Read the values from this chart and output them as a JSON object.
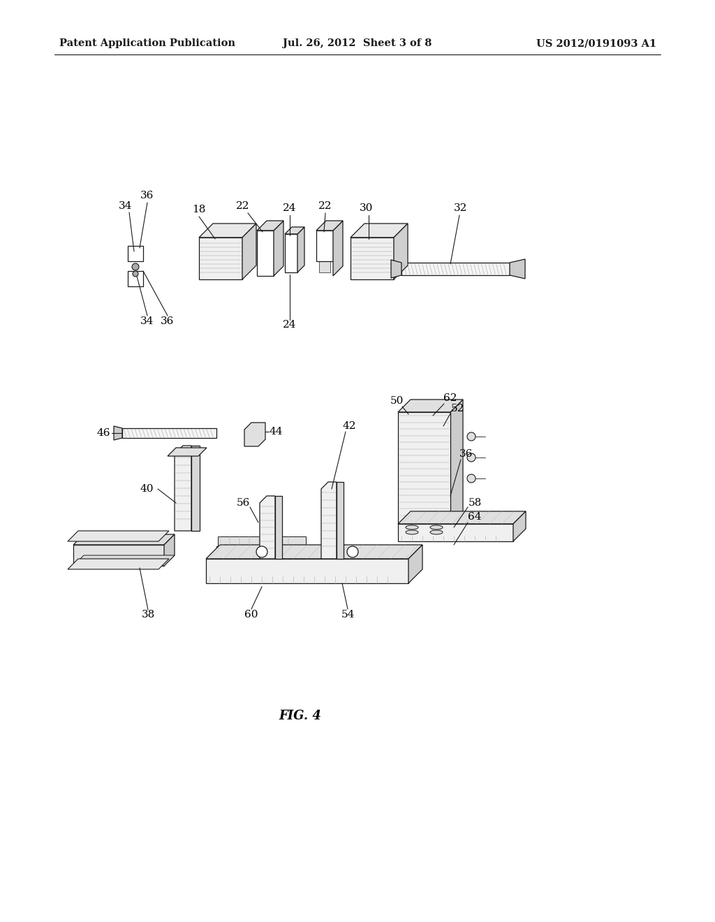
{
  "title": "FIG. 4",
  "header_left": "Patent Application Publication",
  "header_center": "Jul. 26, 2012  Sheet 3 of 8",
  "header_right": "US 2012/0191093 A1",
  "background_color": "#ffffff",
  "text_color": "#000000",
  "line_color": "#1a1a1a",
  "header_fontsize": 10.5,
  "title_fontsize": 13,
  "label_fontsize": 11,
  "fig_width": 10.24,
  "fig_height": 13.2,
  "dpi": 100
}
